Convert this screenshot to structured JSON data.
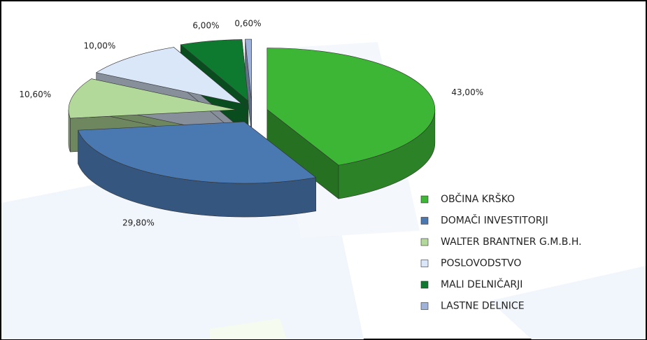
{
  "chart_data": {
    "type": "pie3d",
    "categories": [
      "OBČINA KRŠKO",
      "DOMAČI INVESTITORJI",
      "WALTER BRANTNER G.M.B.H.",
      "POSLOVODSTVO",
      "MALI DELNIČARJI",
      "LASTNE DELNICE"
    ],
    "values": [
      43,
      29.8,
      10.6,
      10,
      6,
      0.6
    ],
    "value_labels": [
      "43,00%",
      "29,80%",
      "10,60%",
      "10,00%",
      "6,00%",
      "0,60%"
    ],
    "colors": [
      "#3db535",
      "#4a78b0",
      "#b2d99a",
      "#d9e7f9",
      "#0e7a30",
      "#9fb3da"
    ]
  }
}
